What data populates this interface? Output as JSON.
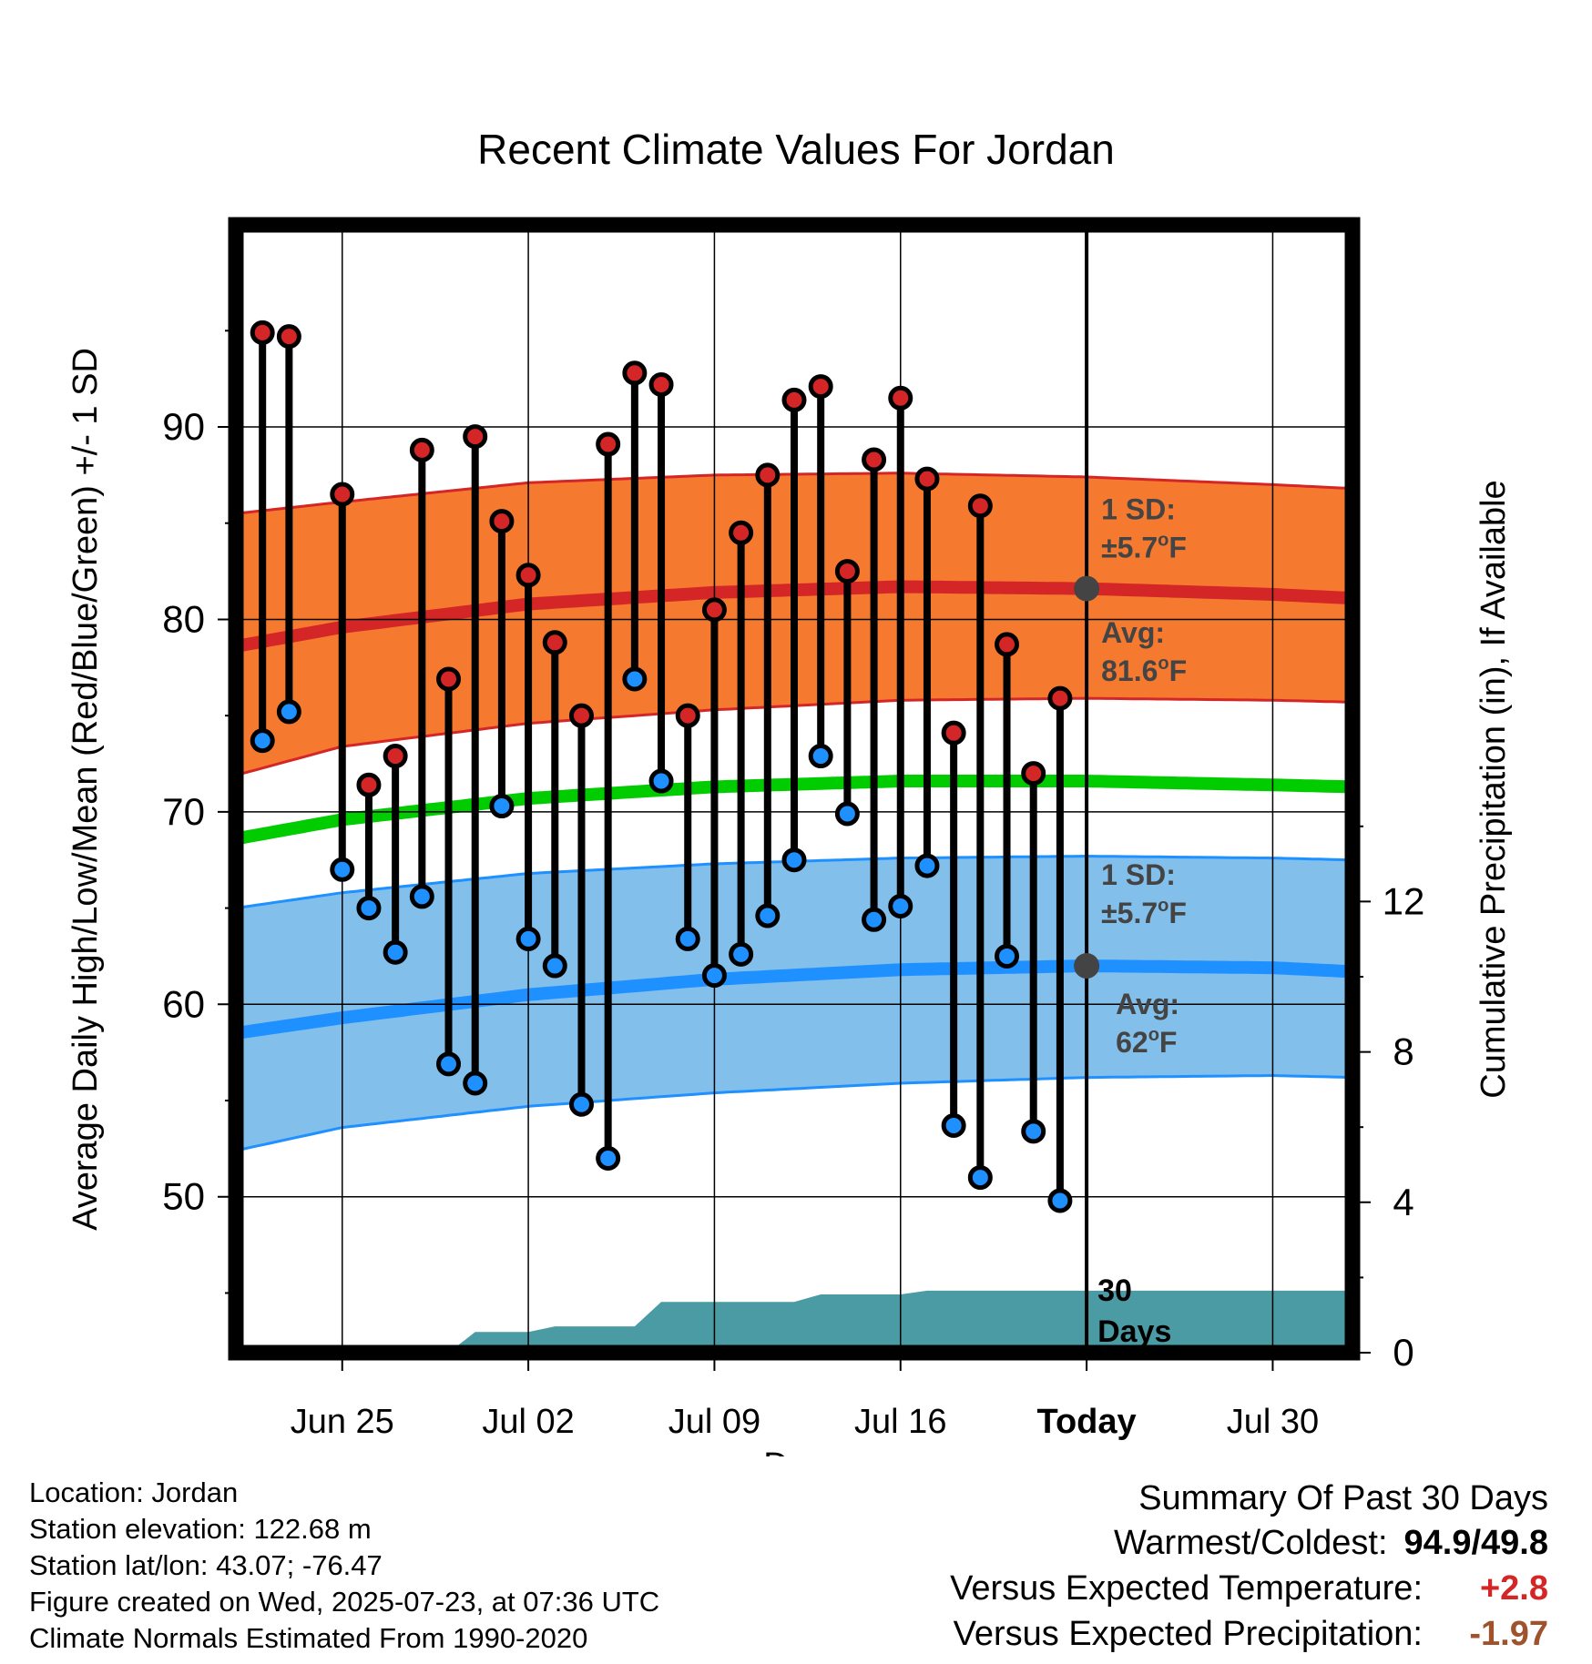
{
  "chart_data": {
    "type": "line",
    "title": "Recent Climate Values For Jordan",
    "xlabel": "Day",
    "ylabel": "Average Daily High/Low/Mean (Red/Blue/Green) +/- 1 SD",
    "y2label": "Cumulative Precipitation (in), If Available",
    "x_tick_labels": [
      "Jun 25",
      "Jul 02",
      "Jul 09",
      "Jul 16",
      "Today",
      "Jul 30"
    ],
    "y_ticks": [
      50,
      60,
      70,
      80,
      90
    ],
    "y2_ticks": [
      0,
      4,
      8,
      12
    ],
    "ylim": [
      41.9,
      100.5
    ],
    "y2lim": [
      0,
      30
    ],
    "xlim": [
      "2025-06-21",
      "2025-08-02"
    ],
    "today": "2025-07-23",
    "grid": true,
    "colors": {
      "high": "#d42626",
      "high_band": "#f57a30",
      "low": "#1e90ff",
      "low_band": "#82bfea",
      "mean": "#00cc00",
      "precip": "#4a9ba3",
      "point_high": "#d42626",
      "point_low": "#1e90ff",
      "avg_marker": "#444444",
      "annotation": "#444444"
    },
    "normals": {
      "dates": [
        "2025-06-21",
        "2025-06-25",
        "2025-07-02",
        "2025-07-09",
        "2025-07-16",
        "2025-07-23",
        "2025-07-30",
        "2025-08-02"
      ],
      "avg_high": [
        78.6,
        79.6,
        80.8,
        81.4,
        81.7,
        81.6,
        81.3,
        81.1
      ],
      "avg_high_plus_sd": [
        85.5,
        86.1,
        87.1,
        87.5,
        87.6,
        87.4,
        87.0,
        86.8
      ],
      "avg_high_minus_sd": [
        71.9,
        73.4,
        74.6,
        75.3,
        75.8,
        75.9,
        75.8,
        75.7
      ],
      "avg_mean": [
        68.6,
        69.6,
        70.7,
        71.3,
        71.6,
        71.6,
        71.4,
        71.3
      ],
      "avg_low": [
        58.5,
        59.3,
        60.5,
        61.3,
        61.8,
        62.0,
        61.9,
        61.7
      ],
      "avg_low_plus_sd": [
        65.0,
        65.8,
        66.8,
        67.3,
        67.6,
        67.7,
        67.6,
        67.5
      ],
      "avg_low_minus_sd": [
        52.4,
        53.6,
        54.7,
        55.4,
        55.9,
        56.2,
        56.3,
        56.2
      ]
    },
    "daily": {
      "dates": [
        "2025-06-22",
        "2025-06-23",
        "2025-06-25",
        "2025-06-26",
        "2025-06-27",
        "2025-06-28",
        "2025-06-29",
        "2025-06-30",
        "2025-07-01",
        "2025-07-02",
        "2025-07-03",
        "2025-07-04",
        "2025-07-05",
        "2025-07-06",
        "2025-07-07",
        "2025-07-08",
        "2025-07-09",
        "2025-07-10",
        "2025-07-11",
        "2025-07-12",
        "2025-07-13",
        "2025-07-14",
        "2025-07-15",
        "2025-07-16",
        "2025-07-17",
        "2025-07-18",
        "2025-07-19",
        "2025-07-20",
        "2025-07-21",
        "2025-07-22"
      ],
      "high": [
        94.9,
        94.7,
        86.5,
        71.4,
        72.9,
        88.8,
        76.9,
        89.5,
        85.1,
        82.3,
        78.8,
        75.0,
        89.1,
        92.8,
        92.2,
        75.0,
        80.5,
        84.5,
        87.5,
        91.4,
        92.1,
        82.5,
        88.3,
        91.5,
        87.3,
        74.1,
        85.9,
        78.7,
        72.0,
        75.9
      ],
      "low": [
        73.7,
        75.2,
        67.0,
        65.0,
        62.7,
        65.6,
        56.9,
        55.9,
        70.3,
        63.4,
        62.0,
        54.8,
        52.0,
        76.9,
        71.6,
        63.4,
        61.5,
        62.6,
        64.6,
        67.5,
        72.9,
        69.9,
        64.4,
        65.1,
        67.2,
        53.7,
        51.0,
        62.5,
        53.4,
        49.8
      ]
    },
    "precip": {
      "dates": [
        "2025-06-28",
        "2025-06-29",
        "2025-06-30",
        "2025-07-02",
        "2025-07-03",
        "2025-07-06",
        "2025-07-07",
        "2025-07-12",
        "2025-07-13",
        "2025-07-16",
        "2025-07-17",
        "2025-08-02"
      ],
      "cumulative_in": [
        0.0,
        0.0,
        0.55,
        0.55,
        0.7,
        0.7,
        1.35,
        1.35,
        1.55,
        1.55,
        1.65,
        1.65
      ]
    },
    "annotations": {
      "high_sd": {
        "line1": "1 SD:",
        "line2": "±5.7",
        "unit": "F"
      },
      "high_avg": {
        "line1": "Avg:",
        "line2": "81.6",
        "unit": "F",
        "value": 81.6
      },
      "low_sd": {
        "line1": "1 SD:",
        "line2": "±5.7",
        "unit": "F"
      },
      "low_avg": {
        "line1": "Avg:",
        "line2": "62",
        "unit": "F",
        "value": 62.0
      },
      "days_line1": "30",
      "days_line2": "Days"
    }
  },
  "info": {
    "location": "Location: Jordan",
    "elevation": "Station elevation: 122.68 m",
    "latlon": "Station lat/lon: 43.07; -76.47",
    "created": "Figure created on Wed, 2025-07-23, at 07:36 UTC",
    "normals": "Climate Normals Estimated From 1990-2020"
  },
  "summary": {
    "title": "Summary Of Past 30 Days",
    "warmest_label": "Warmest/Coldest:",
    "warmest_value": "94.9/49.8",
    "temp_label": "Versus Expected Temperature:",
    "temp_value": "+2.8",
    "temp_color": "#d42626",
    "precip_label": "Versus Expected Precipitation:",
    "precip_value": "-1.97",
    "precip_color": "#a0522d"
  }
}
